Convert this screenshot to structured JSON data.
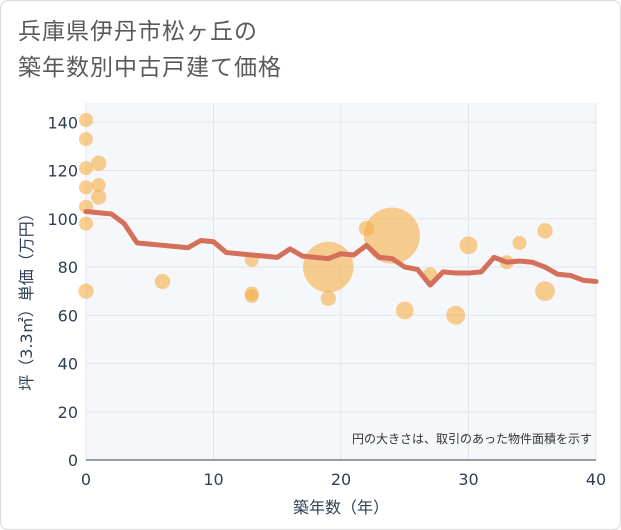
{
  "title": {
    "line1": "兵庫県伊丹市松ヶ丘の",
    "line2": "築年数別中古戸建て価格"
  },
  "chart_data": {
    "type": "scatter",
    "title": "兵庫県伊丹市松ヶ丘の築年数別中古戸建て価格",
    "xlabel": "築年数（年）",
    "ylabel": "坪（3.3㎡）単価（万円）",
    "xlim": [
      0,
      40
    ],
    "ylim": [
      0,
      148
    ],
    "xticks": [
      0,
      10,
      20,
      30,
      40
    ],
    "yticks": [
      0,
      20,
      40,
      60,
      80,
      100,
      120,
      140
    ],
    "grid": true,
    "note": "円の大きさは、取引のあった物件面積を示す",
    "colors": {
      "bubble": "#f5b04a",
      "line": "#d4705a",
      "grid": "#e1e6ee",
      "plot_bg": "#f5f7fb"
    },
    "points": [
      {
        "x": 0,
        "y": 141,
        "size": 1
      },
      {
        "x": 0,
        "y": 133,
        "size": 1
      },
      {
        "x": 0,
        "y": 121,
        "size": 1
      },
      {
        "x": 0,
        "y": 113,
        "size": 1
      },
      {
        "x": 0,
        "y": 105,
        "size": 1
      },
      {
        "x": 0,
        "y": 98,
        "size": 1
      },
      {
        "x": 0,
        "y": 70,
        "size": 1.2
      },
      {
        "x": 1,
        "y": 123,
        "size": 1.2
      },
      {
        "x": 1,
        "y": 114,
        "size": 1
      },
      {
        "x": 1,
        "y": 109,
        "size": 1.2
      },
      {
        "x": 6,
        "y": 74,
        "size": 1.2
      },
      {
        "x": 13,
        "y": 83,
        "size": 1
      },
      {
        "x": 13,
        "y": 69,
        "size": 1
      },
      {
        "x": 13,
        "y": 68,
        "size": 1
      },
      {
        "x": 19,
        "y": 80,
        "size": 13
      },
      {
        "x": 19,
        "y": 67,
        "size": 1.2
      },
      {
        "x": 22,
        "y": 96,
        "size": 1.2
      },
      {
        "x": 24,
        "y": 93,
        "size": 16
      },
      {
        "x": 25,
        "y": 62,
        "size": 1.6
      },
      {
        "x": 27,
        "y": 77,
        "size": 1
      },
      {
        "x": 29,
        "y": 60,
        "size": 1.8
      },
      {
        "x": 30,
        "y": 89,
        "size": 1.6
      },
      {
        "x": 33,
        "y": 82,
        "size": 1
      },
      {
        "x": 34,
        "y": 90,
        "size": 1
      },
      {
        "x": 36,
        "y": 95,
        "size": 1.2
      },
      {
        "x": 36,
        "y": 70,
        "size": 2
      }
    ],
    "trend": {
      "x": [
        0,
        1,
        2,
        3,
        4,
        5,
        6,
        7,
        8,
        9,
        10,
        11,
        12,
        13,
        14,
        15,
        16,
        17,
        18,
        19,
        20,
        21,
        22,
        23,
        24,
        25,
        26,
        27,
        28,
        29,
        30,
        31,
        32,
        33,
        34,
        35,
        36,
        37,
        38,
        39,
        40
      ],
      "y": [
        103,
        102.5,
        102,
        98,
        90,
        89.5,
        89,
        88.5,
        88,
        91,
        90.5,
        86,
        85.5,
        85,
        84.5,
        84,
        87.5,
        84.5,
        84,
        83.5,
        85.5,
        85,
        89,
        84,
        83.5,
        80,
        79,
        72.5,
        78,
        77.5,
        77.5,
        78,
        84,
        82,
        82.5,
        82,
        80,
        77,
        76.5,
        74.5,
        74
      ]
    }
  }
}
